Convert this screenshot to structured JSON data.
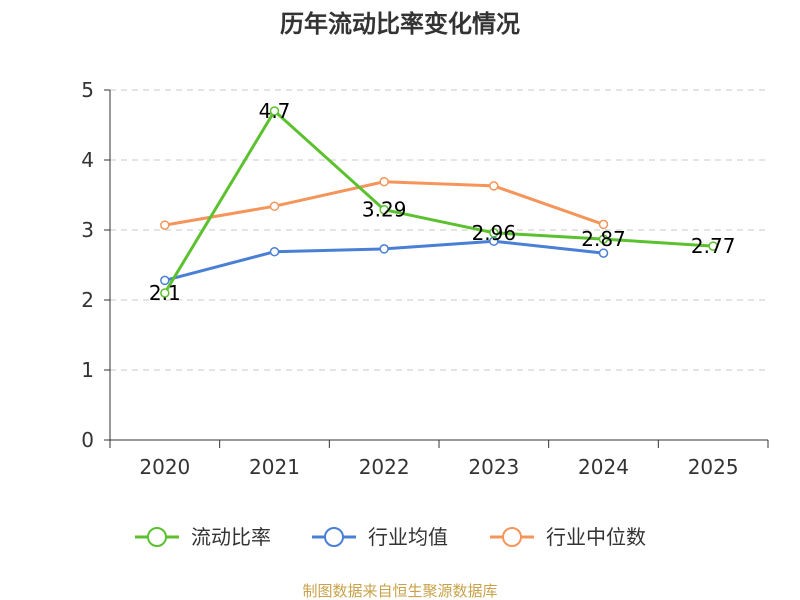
{
  "chart_data": {
    "type": "line",
    "title": "历年流动比率变化情况",
    "categories": [
      "2020",
      "2021",
      "2022",
      "2023",
      "2024",
      "2025"
    ],
    "ylim": [
      0,
      5
    ],
    "yticks": [
      "0",
      "1",
      "2",
      "3",
      "4",
      "5"
    ],
    "grid": true,
    "legend_position": "bottom",
    "series": [
      {
        "name": "流动比率",
        "color": "#5bc12f",
        "values": [
          2.1,
          4.7,
          3.29,
          2.96,
          2.87,
          2.77
        ],
        "labels": [
          "2.1",
          "4.7",
          "3.29",
          "2.96",
          "2.87",
          "2.77"
        ]
      },
      {
        "name": "行业均值",
        "color": "#4a7fd6",
        "values": [
          2.28,
          2.69,
          2.73,
          2.84,
          2.67,
          null
        ]
      },
      {
        "name": "行业中位数",
        "color": "#f5955a",
        "values": [
          3.07,
          3.34,
          3.69,
          3.63,
          3.08,
          null
        ]
      }
    ]
  },
  "source": {
    "text": "制图数据来自恒生聚源数据库",
    "color": "#c9a24a"
  }
}
